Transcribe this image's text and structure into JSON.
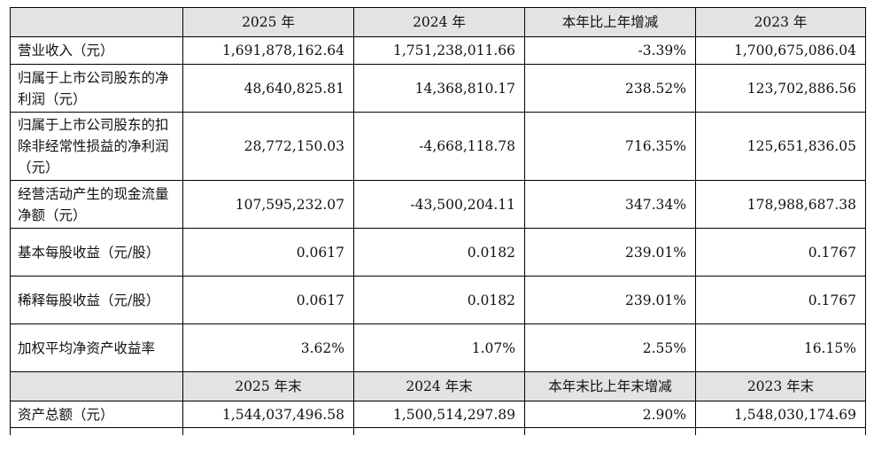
{
  "header1": [
    "",
    "2025 年",
    "2024 年",
    "本年比上年增减",
    "2023 年"
  ],
  "rows1": [
    {
      "label": "营业收入（元）",
      "v2025": "1,691,878,162.64",
      "v2024": "1,751,238,011.66",
      "change": "-3.39%",
      "v2023": "1,700,675,086.04"
    },
    {
      "label": "归属于上市公司股东的净利润（元）",
      "v2025": "48,640,825.81",
      "v2024": "14,368,810.17",
      "change": "238.52%",
      "v2023": "123,702,886.56"
    },
    {
      "label": "归属于上市公司股东的扣除非经常性损益的净利润（元）",
      "v2025": "28,772,150.03",
      "v2024": "-4,668,118.78",
      "change": "716.35%",
      "v2023": "125,651,836.05"
    },
    {
      "label": "经营活动产生的现金流量净额（元）",
      "v2025": "107,595,232.07",
      "v2024": "-43,500,204.11",
      "change": "347.34%",
      "v2023": "178,988,687.38"
    },
    {
      "label": "基本每股收益（元/股）",
      "v2025": "0.0617",
      "v2024": "0.0182",
      "change": "239.01%",
      "v2023": "0.1767"
    },
    {
      "label": "稀释每股收益（元/股）",
      "v2025": "0.0617",
      "v2024": "0.0182",
      "change": "239.01%",
      "v2023": "0.1767"
    },
    {
      "label": "加权平均净资产收益率",
      "v2025": "3.62%",
      "v2024": "1.07%",
      "change": "2.55%",
      "v2023": "16.15%"
    }
  ],
  "header2": [
    "",
    "2025 年末",
    "2024 年末",
    "本年末比上年末增减",
    "2023 年末"
  ],
  "rows2": [
    {
      "label": "资产总额（元）",
      "v2025": "1,544,037,496.58",
      "v2024": "1,500,514,297.89",
      "change": "2.90%",
      "v2023": "1,548,030,174.69"
    }
  ]
}
